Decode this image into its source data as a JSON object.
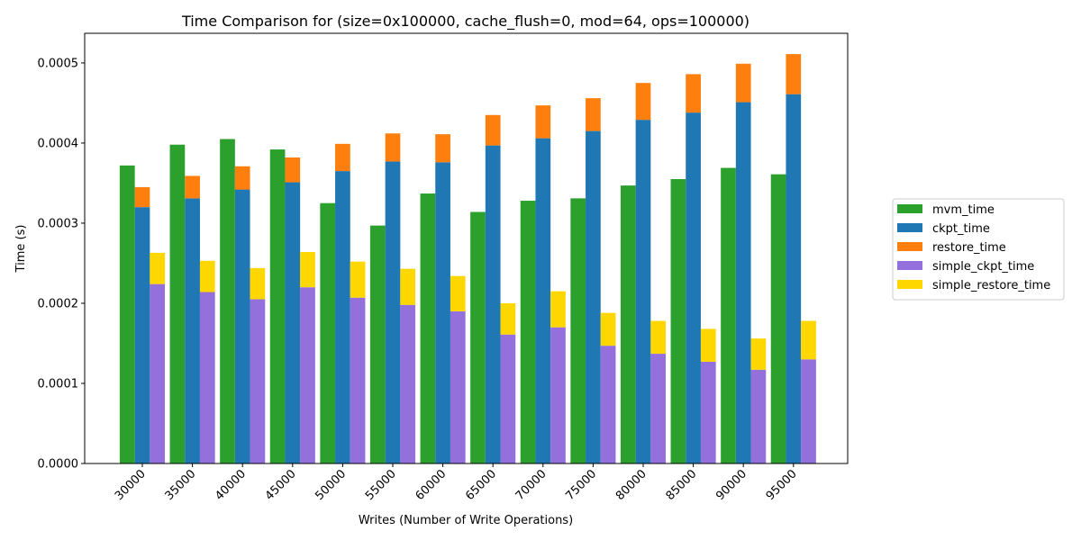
{
  "chart_data": {
    "type": "bar",
    "title": "Time Comparison for (size=0x100000, cache_flush=0, mod=64, ops=100000)",
    "xlabel": "Writes (Number of Write Operations)",
    "ylabel": "Time (s)",
    "ylim": [
      0,
      0.000537
    ],
    "yticks": [
      "0.0000",
      "0.0001",
      "0.0002",
      "0.0003",
      "0.0004",
      "0.0005"
    ],
    "ytick_values": [
      0,
      0.0001,
      0.0002,
      0.0003,
      0.0004,
      0.0005
    ],
    "categories": [
      "30000",
      "35000",
      "40000",
      "45000",
      "50000",
      "55000",
      "60000",
      "65000",
      "70000",
      "75000",
      "80000",
      "85000",
      "90000",
      "95000"
    ],
    "legend_position": "right",
    "grid": false,
    "series": [
      {
        "name": "mvm_time",
        "color": "#2ca02c",
        "group": "mvm",
        "values": [
          0.000372,
          0.000398,
          0.000405,
          0.000392,
          0.000325,
          0.000297,
          0.000337,
          0.000314,
          0.000328,
          0.000331,
          0.000347,
          0.000355,
          0.000369,
          0.000361
        ]
      },
      {
        "name": "ckpt_time",
        "color": "#1f77b4",
        "group": "ckpt",
        "values": [
          0.00032,
          0.000331,
          0.000342,
          0.000351,
          0.000365,
          0.000377,
          0.000376,
          0.000397,
          0.000406,
          0.000415,
          0.000429,
          0.000438,
          0.000451,
          0.000461
        ]
      },
      {
        "name": "restore_time",
        "color": "#ff7f0e",
        "group": "ckpt",
        "stacked": true,
        "values": [
          2.5e-05,
          2.8e-05,
          2.9e-05,
          3.1e-05,
          3.4e-05,
          3.5e-05,
          3.5e-05,
          3.8e-05,
          4.1e-05,
          4.1e-05,
          4.6e-05,
          4.8e-05,
          4.8e-05,
          5e-05
        ]
      },
      {
        "name": "simple_ckpt_time",
        "color": "#9370db",
        "group": "simple",
        "values": [
          0.000224,
          0.000214,
          0.000205,
          0.00022,
          0.000207,
          0.000198,
          0.00019,
          0.000161,
          0.00017,
          0.000147,
          0.000137,
          0.000127,
          0.000117,
          0.00013
        ]
      },
      {
        "name": "simple_restore_time",
        "color": "#ffd700",
        "group": "simple",
        "stacked": true,
        "values": [
          3.9e-05,
          3.9e-05,
          3.9e-05,
          4.4e-05,
          4.5e-05,
          4.5e-05,
          4.4e-05,
          3.9e-05,
          4.5e-05,
          4.1e-05,
          4.1e-05,
          4.1e-05,
          3.9e-05,
          4.8e-05
        ]
      }
    ]
  }
}
